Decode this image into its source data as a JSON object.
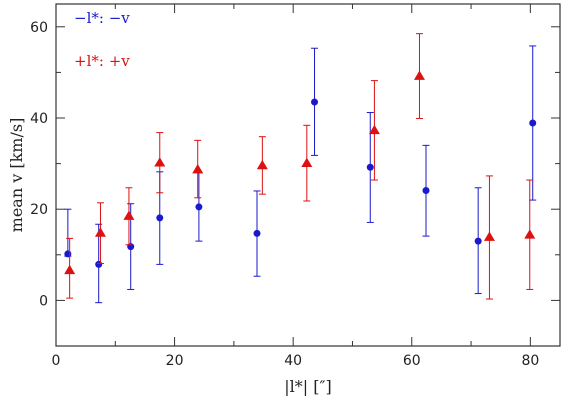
{
  "chart_data": {
    "type": "scatter",
    "xlabel": "|l*| [″]",
    "ylabel": "mean v [km/s]",
    "xlim": [
      0,
      85
    ],
    "ylim": [
      -10,
      65
    ],
    "x_ticks": [
      0,
      20,
      40,
      60,
      80
    ],
    "y_ticks": [
      0,
      20,
      40,
      60
    ],
    "grid": false,
    "legend_position": "top-left",
    "series": [
      {
        "name": "−l*: −v",
        "color": "#1a1acc",
        "marker": "circle",
        "points": [
          {
            "x": 2.0,
            "y": 10.2,
            "err_low": 9.7,
            "err_high": 20.0
          },
          {
            "x": 7.2,
            "y": 7.9,
            "err_low": -0.5,
            "err_high": 16.7
          },
          {
            "x": 12.6,
            "y": 11.8,
            "err_low": 2.4,
            "err_high": 21.2
          },
          {
            "x": 17.5,
            "y": 18.1,
            "err_low": 7.9,
            "err_high": 28.2
          },
          {
            "x": 24.1,
            "y": 20.5,
            "err_low": 13.0,
            "err_high": 28.0
          },
          {
            "x": 33.9,
            "y": 14.7,
            "err_low": 5.3,
            "err_high": 24.0
          },
          {
            "x": 43.6,
            "y": 43.5,
            "err_low": 31.8,
            "err_high": 55.3
          },
          {
            "x": 53.0,
            "y": 29.2,
            "err_low": 17.1,
            "err_high": 41.2
          },
          {
            "x": 62.4,
            "y": 24.1,
            "err_low": 14.1,
            "err_high": 34.0
          },
          {
            "x": 71.2,
            "y": 13.0,
            "err_low": 1.5,
            "err_high": 24.7
          },
          {
            "x": 80.4,
            "y": 38.9,
            "err_low": 22.0,
            "err_high": 55.8
          }
        ]
      },
      {
        "name": "+l*: +v",
        "color": "#dd1111",
        "marker": "triangle",
        "points": [
          {
            "x": 2.3,
            "y": 6.6,
            "err_low": 0.5,
            "err_high": 13.6
          },
          {
            "x": 7.5,
            "y": 14.8,
            "err_low": 8.1,
            "err_high": 21.4
          },
          {
            "x": 12.3,
            "y": 18.5,
            "err_low": 12.2,
            "err_high": 24.7
          },
          {
            "x": 17.5,
            "y": 30.2,
            "err_low": 23.6,
            "err_high": 36.8
          },
          {
            "x": 23.9,
            "y": 28.7,
            "err_low": 22.5,
            "err_high": 35.1
          },
          {
            "x": 34.8,
            "y": 29.6,
            "err_low": 23.3,
            "err_high": 35.9
          },
          {
            "x": 42.3,
            "y": 30.1,
            "err_low": 21.8,
            "err_high": 38.4
          },
          {
            "x": 53.7,
            "y": 37.3,
            "err_low": 26.4,
            "err_high": 48.2
          },
          {
            "x": 61.3,
            "y": 49.2,
            "err_low": 39.9,
            "err_high": 58.5
          },
          {
            "x": 73.1,
            "y": 13.9,
            "err_low": 0.3,
            "err_high": 27.3
          },
          {
            "x": 79.9,
            "y": 14.4,
            "err_low": 2.4,
            "err_high": 26.4
          }
        ]
      }
    ]
  }
}
